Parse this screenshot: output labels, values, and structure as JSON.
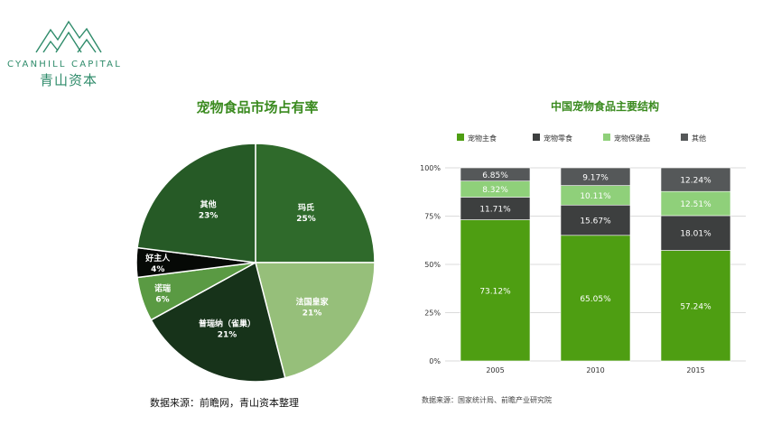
{
  "brand": {
    "name_en": "CYANHILL CAPITAL",
    "name_cn": "青山资本"
  },
  "colors": {
    "brand_green": "#2e8b6a",
    "title_green": "#3a8a1f"
  },
  "chart_data": [
    {
      "type": "pie",
      "title": "宠物食品市场占有率",
      "source": "数据来源：前瞻网，青山资本整理",
      "slices": [
        {
          "name": "玛氏",
          "value": 25,
          "label": "25%",
          "color": "#2f6a2b"
        },
        {
          "name": "法国皇家",
          "value": 21,
          "label": "21%",
          "color": "#96bf7a"
        },
        {
          "name": "普瑞纳（雀巢）",
          "value": 21,
          "label": "21%",
          "color": "#17331a"
        },
        {
          "name": "诺瑞",
          "value": 6,
          "label": "6%",
          "color": "#5a9a43"
        },
        {
          "name": "好主人",
          "value": 4,
          "label": "4%",
          "color": "#060906"
        },
        {
          "name": "其他",
          "value": 23,
          "label": "23%",
          "color": "#265a26"
        }
      ]
    },
    {
      "type": "bar",
      "stacked": true,
      "title": "中国宠物食品主要结构",
      "source": "数据来源：国家统计局、前瞻产业研究院",
      "categories": [
        "2005",
        "2010",
        "2015"
      ],
      "y_ticks": [
        "0%",
        "25%",
        "50%",
        "75%",
        "100%"
      ],
      "ylim": [
        0,
        100
      ],
      "legend_position": "top",
      "series": [
        {
          "name": "宠物主食",
          "color": "#4e9e12",
          "values": [
            73.12,
            65.05,
            57.24
          ],
          "labels": [
            "73.12%",
            "65.05%",
            "57.24%"
          ]
        },
        {
          "name": "宠物零食",
          "color": "#3d3f3f",
          "values": [
            11.71,
            15.67,
            18.01
          ],
          "labels": [
            "11.71%",
            "15.67%",
            "18.01%"
          ]
        },
        {
          "name": "宠物保健品",
          "color": "#8fd07a",
          "values": [
            8.32,
            10.11,
            12.51
          ],
          "labels": [
            "8.32%",
            "10.11%",
            "12.51%"
          ]
        },
        {
          "name": "其他",
          "color": "#555859",
          "values": [
            6.85,
            9.17,
            12.24
          ],
          "labels": [
            "6.85%",
            "9.17%",
            "12.24%"
          ]
        }
      ]
    }
  ]
}
